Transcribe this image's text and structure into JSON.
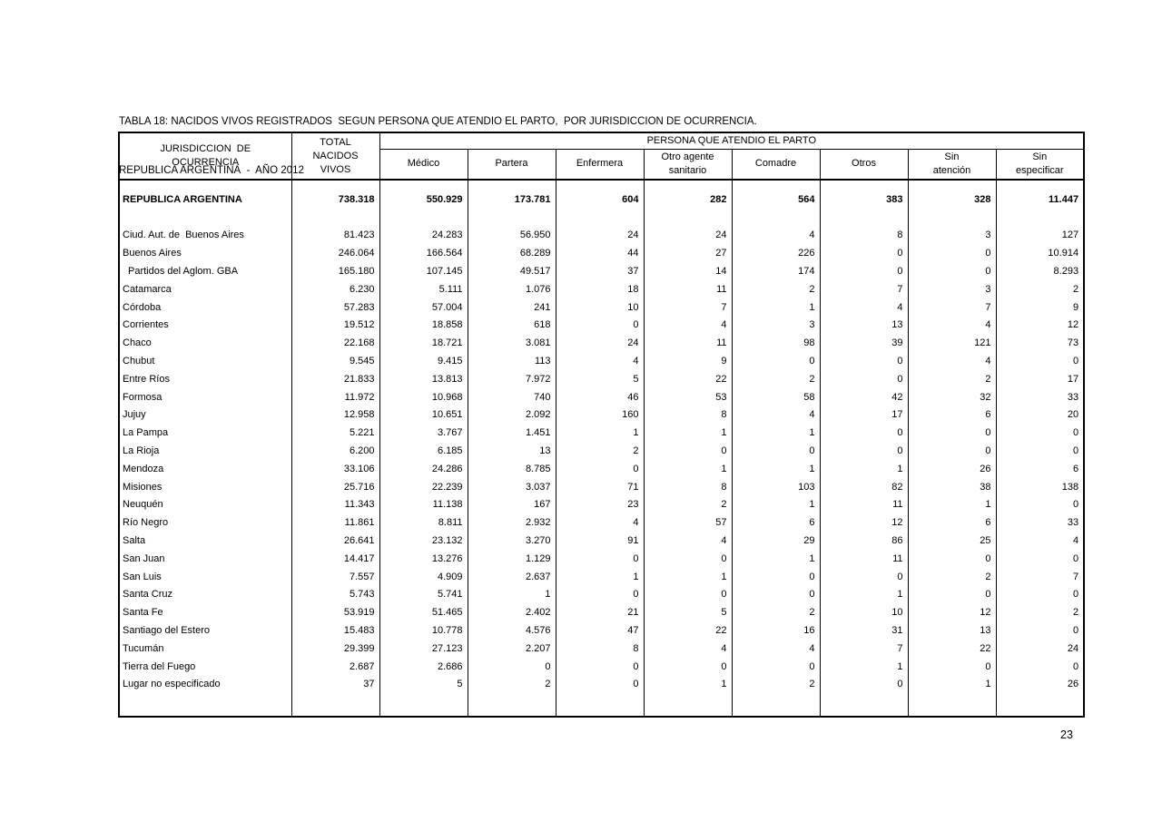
{
  "page": {
    "title_line1": "TABLA 18: NACIDOS VIVOS REGISTRADOS  SEGUN PERSONA QUE ATENDIO EL PARTO,  POR JURISDICCION DE OCURRENCIA.",
    "title_line2": "REPUBLICA ARGENTINA  -  AÑO 2012",
    "page_number": "23"
  },
  "table": {
    "header": {
      "col_jurisdiction": "JURISDICCION  DE\nOCURRENCIA",
      "col_total": "TOTAL\nNACIDOS\nVIVOS",
      "group_label": "PERSONA QUE ATENDIO EL PARTO",
      "subcolumns": [
        "Médico",
        "Partera",
        "Enfermera",
        "Otro agente\nsanitario",
        "Comadre",
        "Otros",
        "Sin\natención",
        "Sin\nespecificar"
      ]
    },
    "rows": [
      {
        "label": "REPUBLICA ARGENTINA",
        "bold": true,
        "indent": false,
        "values": [
          "738.318",
          "550.929",
          "173.781",
          "604",
          "282",
          "564",
          "383",
          "328",
          "11.447"
        ]
      },
      {
        "label": "Ciud. Aut. de  Buenos Aires",
        "bold": false,
        "indent": false,
        "values": [
          "81.423",
          "24.283",
          "56.950",
          "24",
          "24",
          "4",
          "8",
          "3",
          "127"
        ]
      },
      {
        "label": "Buenos Aires",
        "bold": false,
        "indent": false,
        "values": [
          "246.064",
          "166.564",
          "68.289",
          "44",
          "27",
          "226",
          "0",
          "0",
          "10.914"
        ]
      },
      {
        "label": "Partidos del Aglom. GBA",
        "bold": false,
        "indent": true,
        "values": [
          "165.180",
          "107.145",
          "49.517",
          "37",
          "14",
          "174",
          "0",
          "0",
          "8.293"
        ]
      },
      {
        "label": "Catamarca",
        "bold": false,
        "indent": false,
        "values": [
          "6.230",
          "5.111",
          "1.076",
          "18",
          "11",
          "2",
          "7",
          "3",
          "2"
        ]
      },
      {
        "label": "Córdoba",
        "bold": false,
        "indent": false,
        "values": [
          "57.283",
          "57.004",
          "241",
          "10",
          "7",
          "1",
          "4",
          "7",
          "9"
        ]
      },
      {
        "label": "Corrientes",
        "bold": false,
        "indent": false,
        "values": [
          "19.512",
          "18.858",
          "618",
          "0",
          "4",
          "3",
          "13",
          "4",
          "12"
        ]
      },
      {
        "label": "Chaco",
        "bold": false,
        "indent": false,
        "values": [
          "22.168",
          "18.721",
          "3.081",
          "24",
          "11",
          "98",
          "39",
          "121",
          "73"
        ]
      },
      {
        "label": "Chubut",
        "bold": false,
        "indent": false,
        "values": [
          "9.545",
          "9.415",
          "113",
          "4",
          "9",
          "0",
          "0",
          "4",
          "0"
        ]
      },
      {
        "label": "Entre Ríos",
        "bold": false,
        "indent": false,
        "values": [
          "21.833",
          "13.813",
          "7.972",
          "5",
          "22",
          "2",
          "0",
          "2",
          "17"
        ]
      },
      {
        "label": "Formosa",
        "bold": false,
        "indent": false,
        "values": [
          "11.972",
          "10.968",
          "740",
          "46",
          "53",
          "58",
          "42",
          "32",
          "33"
        ]
      },
      {
        "label": "Jujuy",
        "bold": false,
        "indent": false,
        "values": [
          "12.958",
          "10.651",
          "2.092",
          "160",
          "8",
          "4",
          "17",
          "6",
          "20"
        ]
      },
      {
        "label": "La Pampa",
        "bold": false,
        "indent": false,
        "values": [
          "5.221",
          "3.767",
          "1.451",
          "1",
          "1",
          "1",
          "0",
          "0",
          "0"
        ]
      },
      {
        "label": "La Rioja",
        "bold": false,
        "indent": false,
        "values": [
          "6.200",
          "6.185",
          "13",
          "2",
          "0",
          "0",
          "0",
          "0",
          "0"
        ]
      },
      {
        "label": "Mendoza",
        "bold": false,
        "indent": false,
        "values": [
          "33.106",
          "24.286",
          "8.785",
          "0",
          "1",
          "1",
          "1",
          "26",
          "6"
        ]
      },
      {
        "label": "Misiones",
        "bold": false,
        "indent": false,
        "values": [
          "25.716",
          "22.239",
          "3.037",
          "71",
          "8",
          "103",
          "82",
          "38",
          "138"
        ]
      },
      {
        "label": "Neuquén",
        "bold": false,
        "indent": false,
        "values": [
          "11.343",
          "11.138",
          "167",
          "23",
          "2",
          "1",
          "11",
          "1",
          "0"
        ]
      },
      {
        "label": "Río Negro",
        "bold": false,
        "indent": false,
        "values": [
          "11.861",
          "8.811",
          "2.932",
          "4",
          "57",
          "6",
          "12",
          "6",
          "33"
        ]
      },
      {
        "label": "Salta",
        "bold": false,
        "indent": false,
        "values": [
          "26.641",
          "23.132",
          "3.270",
          "91",
          "4",
          "29",
          "86",
          "25",
          "4"
        ]
      },
      {
        "label": "San Juan",
        "bold": false,
        "indent": false,
        "values": [
          "14.417",
          "13.276",
          "1.129",
          "0",
          "0",
          "1",
          "11",
          "0",
          "0"
        ]
      },
      {
        "label": "San Luis",
        "bold": false,
        "indent": false,
        "values": [
          "7.557",
          "4.909",
          "2.637",
          "1",
          "1",
          "0",
          "0",
          "2",
          "7"
        ]
      },
      {
        "label": "Santa Cruz",
        "bold": false,
        "indent": false,
        "values": [
          "5.743",
          "5.741",
          "1",
          "0",
          "0",
          "0",
          "1",
          "0",
          "0"
        ]
      },
      {
        "label": "Santa Fe",
        "bold": false,
        "indent": false,
        "values": [
          "53.919",
          "51.465",
          "2.402",
          "21",
          "5",
          "2",
          "10",
          "12",
          "2"
        ]
      },
      {
        "label": "Santiago del Estero",
        "bold": false,
        "indent": false,
        "values": [
          "15.483",
          "10.778",
          "4.576",
          "47",
          "22",
          "16",
          "31",
          "13",
          "0"
        ]
      },
      {
        "label": "Tucumán",
        "bold": false,
        "indent": false,
        "values": [
          "29.399",
          "27.123",
          "2.207",
          "8",
          "4",
          "4",
          "7",
          "22",
          "24"
        ]
      },
      {
        "label": "Tierra del Fuego",
        "bold": false,
        "indent": false,
        "values": [
          "2.687",
          "2.686",
          "0",
          "0",
          "0",
          "0",
          "1",
          "0",
          "0"
        ]
      },
      {
        "label": "Lugar no especificado",
        "bold": false,
        "indent": false,
        "values": [
          "37",
          "5",
          "2",
          "0",
          "1",
          "2",
          "0",
          "1",
          "26"
        ]
      }
    ]
  }
}
